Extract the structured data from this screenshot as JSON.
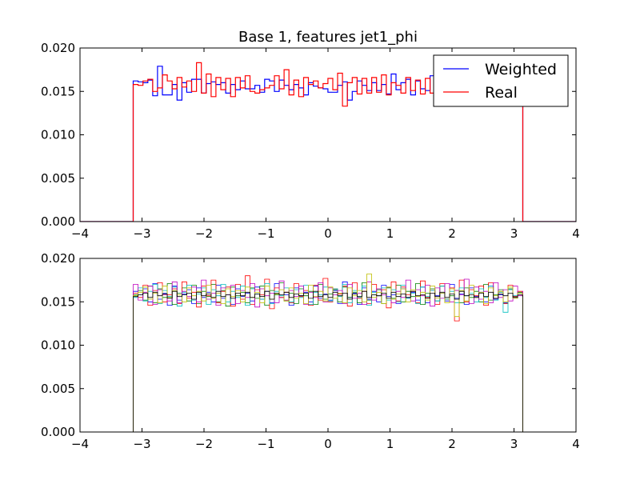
{
  "chart_data": [
    {
      "type": "line",
      "title": "Base 1, features jet1_phi",
      "xlabel": "",
      "ylabel": "",
      "xlim": [
        -4,
        4
      ],
      "ylim": [
        0,
        0.02
      ],
      "xticks": [
        "−4",
        "−3",
        "−2",
        "−1",
        "0",
        "1",
        "2",
        "3",
        "4"
      ],
      "yticks": [
        "0.000",
        "0.005",
        "0.010",
        "0.015",
        "0.020"
      ],
      "grid": false,
      "legend_position": "upper right",
      "x_range_of_support": [
        -3.1416,
        3.1416
      ],
      "bin_width": 0.0785,
      "series": [
        {
          "name": "Weighted",
          "color": "#0000ff",
          "x": [
            -3.14,
            -3.06,
            -2.98,
            -2.91,
            -2.83,
            -2.75,
            -2.67,
            -2.59,
            -2.51,
            -2.43,
            -2.36,
            -2.28,
            -2.2,
            -2.12,
            -2.04,
            -1.96,
            -1.88,
            -1.81,
            -1.73,
            -1.65,
            -1.57,
            -1.49,
            -1.41,
            -1.33,
            -1.26,
            -1.18,
            -1.1,
            -1.02,
            -0.94,
            -0.86,
            -0.79,
            -0.71,
            -0.63,
            -0.55,
            -0.47,
            -0.39,
            -0.31,
            -0.24,
            -0.16,
            -0.08,
            0.0,
            0.08,
            0.16,
            0.24,
            0.31,
            0.39,
            0.47,
            0.55,
            0.63,
            0.71,
            0.79,
            0.86,
            0.94,
            1.02,
            1.1,
            1.18,
            1.26,
            1.33,
            1.41,
            1.49,
            1.57,
            1.65,
            1.73,
            1.81,
            1.88,
            1.96,
            2.04,
            2.12,
            2.2,
            2.28,
            2.36,
            2.43,
            2.51,
            2.59,
            2.67,
            2.75,
            2.83,
            2.91,
            2.98,
            3.06,
            3.14
          ],
          "values": [
            0.0162,
            0.0161,
            0.016,
            0.0163,
            0.0145,
            0.0179,
            0.0146,
            0.0146,
            0.0158,
            0.014,
            0.016,
            0.0149,
            0.0164,
            0.0164,
            0.0148,
            0.0159,
            0.0161,
            0.0158,
            0.016,
            0.0148,
            0.0158,
            0.0152,
            0.0162,
            0.0153,
            0.0153,
            0.0157,
            0.0149,
            0.0164,
            0.0162,
            0.015,
            0.0163,
            0.0157,
            0.0152,
            0.0158,
            0.0154,
            0.0146,
            0.016,
            0.0156,
            0.0154,
            0.0153,
            0.0149,
            0.0149,
            0.0157,
            0.0161,
            0.014,
            0.015,
            0.0162,
            0.0157,
            0.0151,
            0.016,
            0.0151,
            0.0158,
            0.0147,
            0.017,
            0.0152,
            0.016,
            0.0164,
            0.0146,
            0.0162,
            0.0153,
            0.0151,
            0.0168,
            0.0149,
            0.0158,
            0.0155,
            0.0162,
            0.0152,
            0.0164,
            0.0157,
            0.0151,
            0.0161,
            0.015,
            0.0163,
            0.0154,
            0.016,
            0.0152,
            0.0158,
            0.0156,
            0.016,
            0.0155,
            0.0158
          ]
        },
        {
          "name": "Real",
          "color": "#ff0000",
          "x": [
            -3.14,
            -3.06,
            -2.98,
            -2.91,
            -2.83,
            -2.75,
            -2.67,
            -2.59,
            -2.51,
            -2.43,
            -2.36,
            -2.28,
            -2.2,
            -2.12,
            -2.04,
            -1.96,
            -1.88,
            -1.81,
            -1.73,
            -1.65,
            -1.57,
            -1.49,
            -1.41,
            -1.33,
            -1.26,
            -1.18,
            -1.1,
            -1.02,
            -0.94,
            -0.86,
            -0.79,
            -0.71,
            -0.63,
            -0.55,
            -0.47,
            -0.39,
            -0.31,
            -0.24,
            -0.16,
            -0.08,
            0.0,
            0.08,
            0.16,
            0.24,
            0.31,
            0.39,
            0.47,
            0.55,
            0.63,
            0.71,
            0.79,
            0.86,
            0.94,
            1.02,
            1.1,
            1.18,
            1.26,
            1.33,
            1.41,
            1.49,
            1.57,
            1.65,
            1.73,
            1.81,
            1.88,
            1.96,
            2.04,
            2.12,
            2.2,
            2.28,
            2.36,
            2.43,
            2.51,
            2.59,
            2.67,
            2.75,
            2.83,
            2.91,
            2.98,
            3.06,
            3.14
          ],
          "values": [
            0.0158,
            0.0157,
            0.0162,
            0.0164,
            0.015,
            0.0154,
            0.0169,
            0.0162,
            0.0153,
            0.0166,
            0.0155,
            0.0162,
            0.015,
            0.0183,
            0.0148,
            0.017,
            0.0144,
            0.0166,
            0.0152,
            0.0165,
            0.0144,
            0.0166,
            0.0154,
            0.0168,
            0.015,
            0.0148,
            0.0152,
            0.0154,
            0.0157,
            0.0168,
            0.0153,
            0.0175,
            0.0146,
            0.0163,
            0.0144,
            0.0166,
            0.0158,
            0.0162,
            0.0154,
            0.0159,
            0.0165,
            0.0152,
            0.0171,
            0.0133,
            0.016,
            0.0166,
            0.0147,
            0.0165,
            0.0148,
            0.0166,
            0.0149,
            0.0169,
            0.0146,
            0.016,
            0.0157,
            0.0148,
            0.0166,
            0.0151,
            0.0163,
            0.0147,
            0.0165,
            0.0148,
            0.0164,
            0.0152,
            0.0166,
            0.0158,
            0.015,
            0.0163,
            0.0155,
            0.016,
            0.0152,
            0.0161,
            0.0156,
            0.0159,
            0.0153,
            0.016,
            0.0157,
            0.0161,
            0.0155,
            0.0159,
            0.0158
          ]
        }
      ]
    },
    {
      "type": "line",
      "title": "",
      "xlabel": "",
      "ylabel": "",
      "xlim": [
        -4,
        4
      ],
      "ylim": [
        0,
        0.02
      ],
      "xticks": [
        "−4",
        "−3",
        "−2",
        "−1",
        "0",
        "1",
        "2",
        "3",
        "4"
      ],
      "yticks": [
        "0.000",
        "0.005",
        "0.010",
        "0.015",
        "0.020"
      ],
      "grid": false,
      "x_range_of_support": [
        -3.1416,
        3.1416
      ],
      "bin_width": 0.0785,
      "series": [
        {
          "color": "#0000ff",
          "values": [
            0.0162,
            0.0158,
            0.0165,
            0.015,
            0.0171,
            0.0153,
            0.016,
            0.0146,
            0.0168,
            0.0152,
            0.0159,
            0.0164,
            0.0148,
            0.0166,
            0.0155,
            0.0161,
            0.015,
            0.0169,
            0.0154,
            0.0158,
            0.0147,
            0.0165,
            0.0156,
            0.016,
            0.0151,
            0.0167,
            0.0153,
            0.0162,
            0.0149,
            0.0171,
            0.0155,
            0.0158,
            0.0146,
            0.0166,
            0.0157,
            0.0161,
            0.015,
            0.0168,
            0.0154,
            0.0159,
            0.0152,
            0.0163,
            0.0148,
            0.0173,
            0.0155,
            0.016,
            0.0147,
            0.0166,
            0.0153,
            0.0162,
            0.015,
            0.0169,
            0.0156,
            0.0158,
            0.0148,
            0.0165,
            0.0155,
            0.0161,
            0.0152,
            0.0167,
            0.0149,
            0.0163,
            0.0157,
            0.016,
            0.0151,
            0.017,
            0.0154,
            0.0159,
            0.0147,
            0.0166,
            0.0156,
            0.0161,
            0.015,
            0.0168,
            0.0153,
            0.0158,
            0.0149,
            0.0164,
            0.0156,
            0.016,
            0.0158
          ]
        },
        {
          "color": "#008000",
          "values": [
            0.0158,
            0.0163,
            0.0152,
            0.0168,
            0.0149,
            0.0165,
            0.0155,
            0.0171,
            0.0147,
            0.016,
            0.0166,
            0.0151,
            0.0169,
            0.0148,
            0.0162,
            0.0156,
            0.017,
            0.015,
            0.0163,
            0.0145,
            0.0167,
            0.0157,
            0.0161,
            0.0149,
            0.0166,
            0.0154,
            0.0168,
            0.0146,
            0.0163,
            0.0158,
            0.0172,
            0.0151,
            0.016,
            0.0148,
            0.0165,
            0.0157,
            0.0162,
            0.0147,
            0.017,
            0.0153,
            0.0159,
            0.0164,
            0.015,
            0.0167,
            0.0155,
            0.0161,
            0.0149,
            0.0172,
            0.0152,
            0.0158,
            0.0164,
            0.0148,
            0.0166,
            0.0154,
            0.0169,
            0.015,
            0.0162,
            0.0156,
            0.0171,
            0.0147,
            0.016,
            0.0165,
            0.0151,
            0.0168,
            0.0153,
            0.0157,
            0.0163,
            0.0149,
            0.0166,
            0.0155,
            0.0162,
            0.015,
            0.017,
            0.0152,
            0.0158,
            0.0164,
            0.0148,
            0.0165,
            0.0156,
            0.0161,
            0.016
          ]
        },
        {
          "color": "#ff0000",
          "values": [
            0.016,
            0.0155,
            0.0169,
            0.0146,
            0.0163,
            0.0172,
            0.015,
            0.0158,
            0.0165,
            0.0148,
            0.0173,
            0.0154,
            0.0161,
            0.0144,
            0.0168,
            0.0157,
            0.0175,
            0.0149,
            0.0162,
            0.0167,
            0.0145,
            0.017,
            0.0153,
            0.018,
            0.0147,
            0.0164,
            0.0158,
            0.0176,
            0.0142,
            0.0166,
            0.0155,
            0.0161,
            0.0149,
            0.0171,
            0.0156,
            0.0163,
            0.0146,
            0.0169,
            0.0152,
            0.0177,
            0.015,
            0.0165,
            0.0159,
            0.0168,
            0.0145,
            0.0172,
            0.0154,
            0.0162,
            0.0148,
            0.017,
            0.0157,
            0.0164,
            0.0143,
            0.0173,
            0.0151,
            0.0167,
            0.0158,
            0.0162,
            0.0149,
            0.0174,
            0.0155,
            0.0163,
            0.0147,
            0.0171,
            0.0153,
            0.0166,
            0.0128,
            0.0175,
            0.015,
            0.0164,
            0.0157,
            0.0168,
            0.0146,
            0.0172,
            0.0154,
            0.0161,
            0.0148,
            0.0169,
            0.0156,
            0.0162,
            0.0159
          ]
        },
        {
          "color": "#00bfbf",
          "values": [
            0.0155,
            0.0166,
            0.0151,
            0.0162,
            0.017,
            0.0148,
            0.0163,
            0.0156,
            0.0167,
            0.0145,
            0.0161,
            0.0169,
            0.0152,
            0.0159,
            0.0166,
            0.0147,
            0.0164,
            0.0157,
            0.017,
            0.015,
            0.0162,
            0.0155,
            0.0168,
            0.0146,
            0.0165,
            0.0159,
            0.0153,
            0.0171,
            0.0148,
            0.0162,
            0.0157,
            0.0166,
            0.015,
            0.0164,
            0.0155,
            0.0169,
            0.0147,
            0.0161,
            0.0158,
            0.0167,
            0.0151,
            0.0165,
            0.0156,
            0.017,
            0.0149,
            0.0163,
            0.0155,
            0.0168,
            0.0146,
            0.0161,
            0.0157,
            0.0166,
            0.0152,
            0.0164,
            0.015,
            0.0169,
            0.0154,
            0.016,
            0.0148,
            0.0167,
            0.0156,
            0.0163,
            0.0151,
            0.0168,
            0.0153,
            0.0162,
            0.0149,
            0.0166,
            0.0157,
            0.016,
            0.015,
            0.0165,
            0.0155,
            0.0168,
            0.0152,
            0.0161,
            0.0138,
            0.0164,
            0.0157,
            0.016,
            0.0156
          ]
        },
        {
          "color": "#bf00bf",
          "values": [
            0.017,
            0.0152,
            0.0161,
            0.0168,
            0.0147,
            0.0164,
            0.0158,
            0.0151,
            0.0173,
            0.0149,
            0.0162,
            0.0156,
            0.0167,
            0.015,
            0.0175,
            0.0153,
            0.016,
            0.0146,
            0.0166,
            0.0158,
            0.0169,
            0.0148,
            0.0163,
            0.0155,
            0.0171,
            0.0144,
            0.0165,
            0.0157,
            0.016,
            0.0149,
            0.0174,
            0.0152,
            0.0163,
            0.0156,
            0.0168,
            0.0147,
            0.0161,
            0.0155,
            0.0172,
            0.015,
            0.0166,
            0.0158,
            0.0163,
            0.0148,
            0.017,
            0.0154,
            0.016,
            0.0147,
            0.0173,
            0.0152,
            0.0165,
            0.0158,
            0.0167,
            0.0149,
            0.0162,
            0.0155,
            0.0175,
            0.0151,
            0.0164,
            0.0157,
            0.0169,
            0.0145,
            0.0166,
            0.0154,
            0.0171,
            0.015,
            0.0163,
            0.0158,
            0.0176,
            0.0148,
            0.0167,
            0.0153,
            0.0162,
            0.0149,
            0.0172,
            0.0155,
            0.0164,
            0.0151,
            0.0168,
            0.0157,
            0.0162
          ]
        },
        {
          "color": "#bfbf00",
          "values": [
            0.0157,
            0.0161,
            0.0167,
            0.0153,
            0.016,
            0.0149,
            0.0168,
            0.0155,
            0.0163,
            0.0158,
            0.015,
            0.0166,
            0.0157,
            0.0162,
            0.0151,
            0.0169,
            0.0154,
            0.016,
            0.0148,
            0.0165,
            0.0156,
            0.0163,
            0.015,
            0.0167,
            0.0155,
            0.0161,
            0.0149,
            0.0168,
            0.0153,
            0.0159,
            0.0164,
            0.0151,
            0.0166,
            0.0154,
            0.016,
            0.0148,
            0.0169,
            0.0156,
            0.0162,
            0.0151,
            0.0167,
            0.0154,
            0.016,
            0.0149,
            0.0166,
            0.0157,
            0.0163,
            0.015,
            0.0182,
            0.0155,
            0.0161,
            0.0148,
            0.0167,
            0.0153,
            0.0159,
            0.0165,
            0.015,
            0.0164,
            0.0156,
            0.0161,
            0.0152,
            0.0168,
            0.0154,
            0.016,
            0.0149,
            0.0165,
            0.0133,
            0.0163,
            0.0151,
            0.0169,
            0.0155,
            0.0161,
            0.0148,
            0.0166,
            0.0157,
            0.0162,
            0.015,
            0.0167,
            0.0154,
            0.016,
            0.0157
          ]
        },
        {
          "color": "#000000",
          "values": [
            0.0156,
            0.0158,
            0.016,
            0.0155,
            0.0161,
            0.0157,
            0.0159,
            0.0154,
            0.0162,
            0.0156,
            0.0158,
            0.016,
            0.0153,
            0.0161,
            0.0157,
            0.0159,
            0.0155,
            0.0162,
            0.0156,
            0.0158,
            0.0154,
            0.016,
            0.0157,
            0.0161,
            0.0155,
            0.0159,
            0.0156,
            0.0162,
            0.0153,
            0.016,
            0.0158,
            0.0161,
            0.0155,
            0.0159,
            0.0157,
            0.016,
            0.0154,
            0.0162,
            0.0156,
            0.0158,
            0.0155,
            0.0161,
            0.0157,
            0.016,
            0.0153,
            0.0159,
            0.0156,
            0.0162,
            0.0155,
            0.0158,
            0.0157,
            0.016,
            0.0154,
            0.0161,
            0.0156,
            0.0159,
            0.0155,
            0.0162,
            0.0157,
            0.0158,
            0.0154,
            0.016,
            0.0156,
            0.0161,
            0.0155,
            0.0159,
            0.0153,
            0.0162,
            0.0157,
            0.0158,
            0.0155,
            0.016,
            0.0156,
            0.0161,
            0.0154,
            0.0159,
            0.0157,
            0.016,
            0.0155,
            0.0158,
            0.0157
          ]
        }
      ]
    }
  ]
}
